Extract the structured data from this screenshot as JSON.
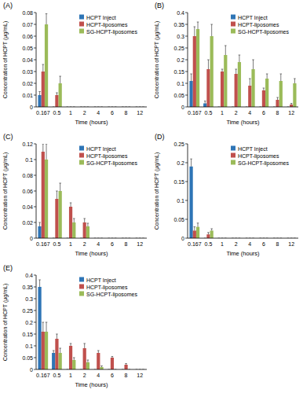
{
  "chart_data": [
    {
      "type": "bar",
      "title": "(A)",
      "x_label": "Time (hours)",
      "y_label": "Concentration of HCPT (μg/mL)",
      "categories": [
        "0.167",
        "0.5",
        "1",
        "2",
        "4",
        "6",
        "8",
        "12"
      ],
      "ylim": [
        0,
        0.08
      ],
      "yticks": [
        0,
        0.01,
        0.02,
        0.03,
        0.04,
        0.05,
        0.06,
        0.07,
        0.08
      ],
      "grid": false,
      "legend": "upper right",
      "series": [
        {
          "name": "HCPT Inject",
          "color": "#2e75b6",
          "values": [
            0.01,
            0,
            0,
            0,
            0,
            0,
            0,
            0
          ],
          "errors": [
            0.003,
            0,
            0,
            0,
            0,
            0,
            0,
            0
          ]
        },
        {
          "name": "HCPT-liposomes",
          "color": "#c0504d",
          "values": [
            0.03,
            0.01,
            0,
            0,
            0,
            0,
            0,
            0
          ],
          "errors": [
            0.006,
            0.002,
            0,
            0,
            0,
            0,
            0,
            0
          ]
        },
        {
          "name": "SG-HCPT-liposomes",
          "color": "#9bbb59",
          "values": [
            0.07,
            0.02,
            0,
            0,
            0,
            0,
            0,
            0
          ],
          "errors": [
            0.009,
            0.006,
            0,
            0,
            0,
            0,
            0,
            0
          ]
        }
      ]
    },
    {
      "type": "bar",
      "title": "(B)",
      "x_label": "Time (hours)",
      "y_label": "Concentration of HCPT (μg/mL)",
      "categories": [
        "0.167",
        "0.5",
        "1",
        "2",
        "4",
        "6",
        "8",
        "12"
      ],
      "ylim": [
        0,
        0.4
      ],
      "yticks": [
        0,
        0.05,
        0.1,
        0.15,
        0.2,
        0.25,
        0.3,
        0.35,
        0.4
      ],
      "grid": false,
      "legend": "upper right",
      "series": [
        {
          "name": "HCPT Inject",
          "color": "#2e75b6",
          "values": [
            0.11,
            0.015,
            0,
            0,
            0,
            0,
            0,
            0
          ],
          "errors": [
            0.03,
            0.01,
            0,
            0,
            0,
            0,
            0,
            0
          ]
        },
        {
          "name": "HCPT-liposomes",
          "color": "#c0504d",
          "values": [
            0.3,
            0.16,
            0.15,
            0.14,
            0.09,
            0.07,
            0.03,
            0.01
          ],
          "errors": [
            0.04,
            0.04,
            0.01,
            0.02,
            0.03,
            0.01,
            0.01,
            0.005
          ]
        },
        {
          "name": "SG-HCPT-liposomes",
          "color": "#9bbb59",
          "values": [
            0.33,
            0.3,
            0.22,
            0.19,
            0.16,
            0.12,
            0.11,
            0.1
          ],
          "errors": [
            0.03,
            0.05,
            0.04,
            0.03,
            0.04,
            0.02,
            0.03,
            0.02
          ]
        }
      ]
    },
    {
      "type": "bar",
      "title": "(C)",
      "x_label": "Time (hours)",
      "y_label": "Concentration of HCPT (μg/mL)",
      "categories": [
        "0.167",
        "0.5",
        "1",
        "2",
        "4",
        "6",
        "8",
        "12"
      ],
      "ylim": [
        0,
        0.12
      ],
      "yticks": [
        0,
        0.02,
        0.04,
        0.06,
        0.08,
        0.1,
        0.12
      ],
      "grid": false,
      "legend": "upper right",
      "series": [
        {
          "name": "HCPT Inject",
          "color": "#2e75b6",
          "values": [
            0.015,
            0,
            0,
            0,
            0,
            0,
            0,
            0
          ],
          "errors": [
            0.005,
            0,
            0,
            0,
            0,
            0,
            0,
            0
          ]
        },
        {
          "name": "HCPT-liposomes",
          "color": "#c0504d",
          "values": [
            0.11,
            0.05,
            0.04,
            0.02,
            0,
            0,
            0,
            0
          ],
          "errors": [
            0.01,
            0.01,
            0.005,
            0.005,
            0,
            0,
            0,
            0
          ]
        },
        {
          "name": "SG-HCPT-liposomes",
          "color": "#9bbb59",
          "values": [
            0.1,
            0.06,
            0.02,
            0.015,
            0,
            0,
            0,
            0
          ],
          "errors": [
            0.02,
            0.01,
            0.005,
            0.004,
            0,
            0,
            0,
            0
          ]
        }
      ]
    },
    {
      "type": "bar",
      "title": "(D)",
      "x_label": "Time (hours)",
      "y_label": "Concentration of HCPT (μg/mL)",
      "categories": [
        "0.167",
        "0.5",
        "1",
        "2",
        "4",
        "6",
        "8",
        "12"
      ],
      "ylim": [
        0,
        0.25
      ],
      "yticks": [
        0,
        0.05,
        0.1,
        0.15,
        0.2,
        0.25
      ],
      "grid": false,
      "legend": "upper right",
      "series": [
        {
          "name": "HCPT Inject",
          "color": "#2e75b6",
          "values": [
            0.19,
            0,
            0,
            0,
            0,
            0,
            0,
            0
          ],
          "errors": [
            0.02,
            0,
            0,
            0,
            0,
            0,
            0,
            0
          ]
        },
        {
          "name": "HCPT-liposomes",
          "color": "#c0504d",
          "values": [
            0.02,
            0.01,
            0,
            0,
            0,
            0,
            0,
            0
          ],
          "errors": [
            0.01,
            0.005,
            0,
            0,
            0,
            0,
            0,
            0
          ]
        },
        {
          "name": "SG-HCPT-liposomes",
          "color": "#9bbb59",
          "values": [
            0.03,
            0.02,
            0,
            0,
            0,
            0,
            0,
            0
          ],
          "errors": [
            0.01,
            0.005,
            0,
            0,
            0,
            0,
            0,
            0
          ]
        }
      ]
    },
    {
      "type": "bar",
      "title": "(E)",
      "x_label": "Time (hours)",
      "y_label": "Concentration of HCPT (μg/mL)",
      "categories": [
        "0.167",
        "0.5",
        "1",
        "2",
        "4",
        "6",
        "8",
        "12"
      ],
      "ylim": [
        0,
        0.4
      ],
      "yticks": [
        0,
        0.05,
        0.1,
        0.15,
        0.2,
        0.25,
        0.3,
        0.35,
        0.4
      ],
      "grid": false,
      "legend": "upper right",
      "series": [
        {
          "name": "HCPT Inject",
          "color": "#2e75b6",
          "values": [
            0.35,
            0.07,
            0,
            0,
            0,
            0,
            0,
            0
          ],
          "errors": [
            0.03,
            0.01,
            0,
            0,
            0,
            0,
            0,
            0
          ]
        },
        {
          "name": "HCPT-liposomes",
          "color": "#c0504d",
          "values": [
            0.16,
            0.13,
            0.1,
            0.09,
            0.07,
            0.05,
            0.02,
            0
          ],
          "errors": [
            0.04,
            0.02,
            0.01,
            0.02,
            0.01,
            0.005,
            0.005,
            0
          ]
        },
        {
          "name": "SG-HCPT-liposomes",
          "color": "#9bbb59",
          "values": [
            0.16,
            0.07,
            0.04,
            0.03,
            0.01,
            0,
            0,
            0
          ],
          "errors": [
            0.04,
            0.02,
            0.01,
            0.01,
            0.005,
            0,
            0,
            0
          ]
        }
      ]
    }
  ]
}
